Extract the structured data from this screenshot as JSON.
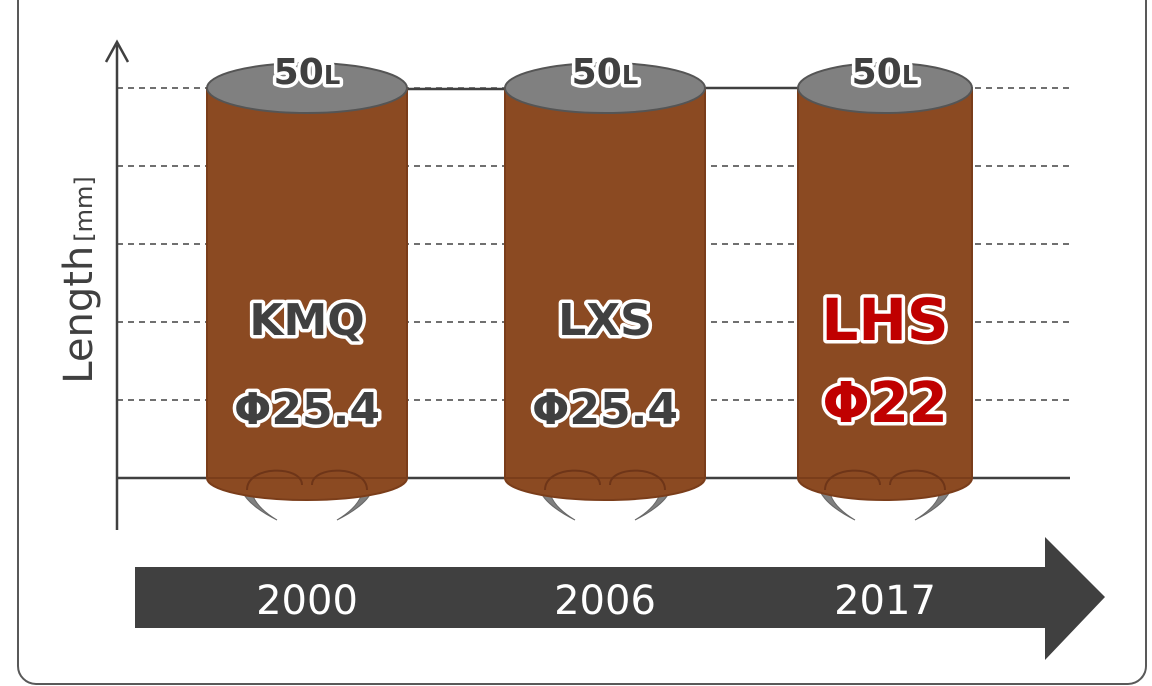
{
  "axis": {
    "label": "Length",
    "unit": "[mm]"
  },
  "items": [
    {
      "capacity": "50",
      "capacity_unit": "L",
      "name": "KMQ",
      "diameter": "Φ25.4",
      "year": "2000",
      "highlight": false
    },
    {
      "capacity": "50",
      "capacity_unit": "L",
      "name": "LXS",
      "diameter": "Φ25.4",
      "year": "2006",
      "highlight": false
    },
    {
      "capacity": "50",
      "capacity_unit": "L",
      "name": "LHS",
      "diameter": "Φ22",
      "year": "2017",
      "highlight": true
    }
  ]
}
